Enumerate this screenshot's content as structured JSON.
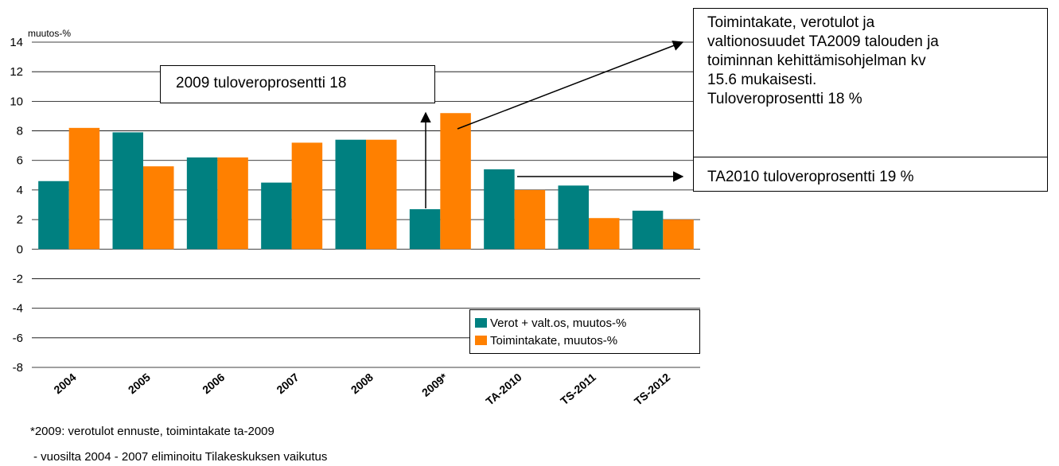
{
  "chart_data": {
    "type": "bar",
    "categories": [
      "2004",
      "2005",
      "2006",
      "2007",
      "2008",
      "2009*",
      "TA-2010",
      "TS-2011",
      "TS-2012"
    ],
    "series": [
      {
        "name": "Verot + valt.os, muutos-%",
        "color": "#008080",
        "values": [
          4.6,
          7.9,
          6.2,
          4.5,
          7.4,
          2.7,
          5.4,
          4.3,
          2.6
        ]
      },
      {
        "name": "Toimintakate, muutos-%",
        "color": "#FF8000",
        "values": [
          8.2,
          5.6,
          6.2,
          7.2,
          7.4,
          9.2,
          4.0,
          2.1,
          2.0
        ]
      }
    ],
    "ylabel": "muutos-%",
    "ylim": [
      -8,
      14
    ],
    "yticks": [
      "14",
      "12",
      "10",
      "8",
      "6",
      "4",
      "2",
      "0",
      "-2",
      "-4",
      "-6",
      "-8"
    ],
    "grid": true,
    "legend_position": "bottom-right"
  },
  "annotations": {
    "tulovero_2009": "2009 tuloveroprosentti 18",
    "ta2009": "Toimintakate, verotulot ja\nvaltionosuudet TA2009 talouden ja\ntoiminnan kehittämisohjelman kv\n15.6 mukaisesti.\nTuloveroprosentti 18 %",
    "ta2010": "TA2010 tuloveroprosentti 19 %"
  },
  "footnotes": {
    "note_2009": "*2009: verotulot ennuste, toimintakate ta-2009",
    "note_tilakeskus": "- vuosilta 2004 - 2007 eliminoitu Tilakeskuksen vaikutus"
  }
}
